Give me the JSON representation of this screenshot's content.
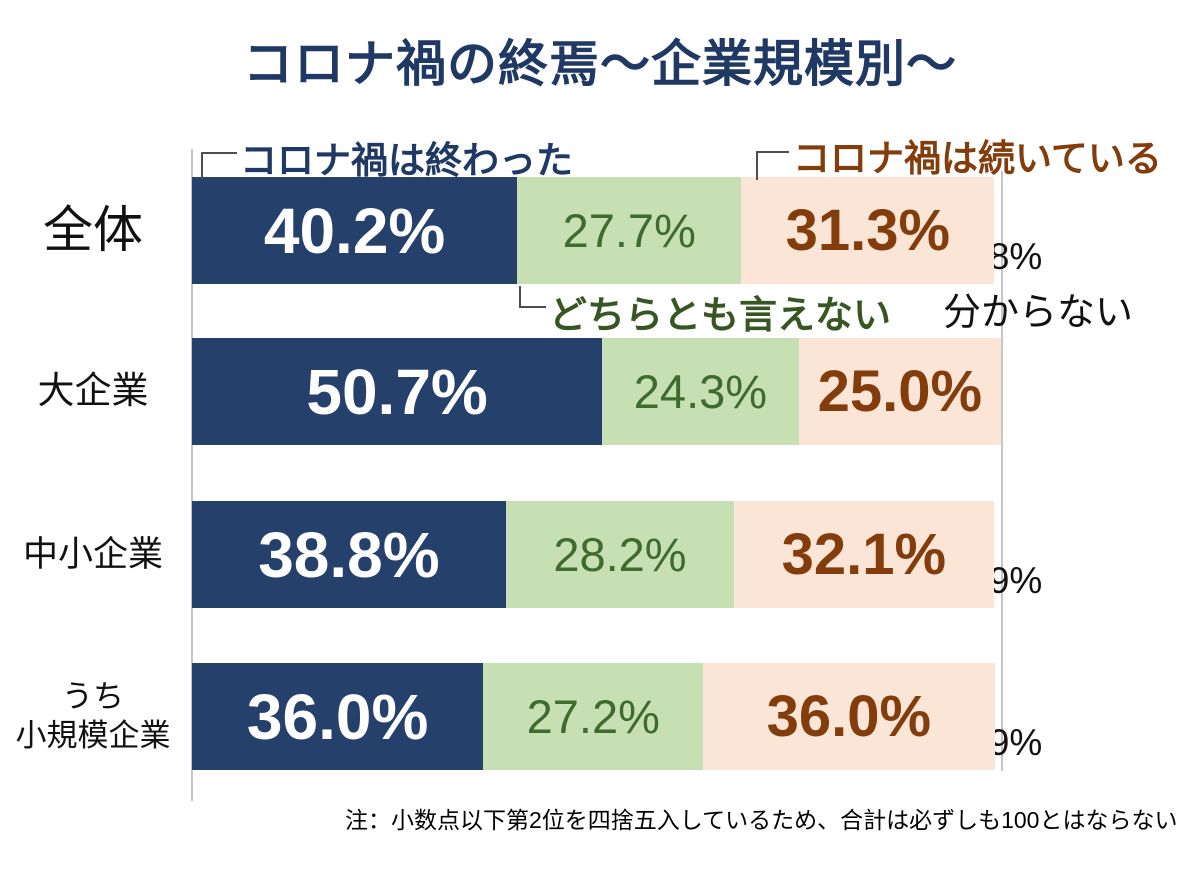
{
  "title": "コロナ禍の終焉～企業規模別～",
  "note": "注：小数点以下第2位を四捨五入しているため、合計は必ずしも100とはならない",
  "legend": {
    "ended": "コロナ禍は終わった",
    "neutral": "どちらとも言えない",
    "continuing": "コロナ禍は続いている",
    "unknown": "分からない"
  },
  "colors": {
    "navy_fill": "#24406B",
    "navy_text": "#1F3864",
    "green_fill": "#C6E0B4",
    "green_text": "#3F6B2E",
    "green_legend_text": "#375623",
    "peach_fill": "#FBE5D6",
    "brown_text": "#833C0C",
    "axis_gray": "#C6C6C6",
    "black_text": "#111111"
  },
  "chart_data": {
    "type": "bar",
    "orientation": "horizontal",
    "stacked": true,
    "unit": "%",
    "xlim": [
      0,
      100
    ],
    "grid": "right-edge-only",
    "legend_position": "callouts",
    "title": "コロナ禍の終焉～企業規模別～",
    "categories": [
      "全体",
      "大企業",
      "中小企業",
      "うち\n小規模企業"
    ],
    "series": [
      {
        "name": "コロナ禍は終わった",
        "color": "#24406B",
        "values": [
          40.2,
          50.7,
          38.8,
          36.0
        ]
      },
      {
        "name": "どちらとも言えない",
        "color": "#C6E0B4",
        "values": [
          27.7,
          24.3,
          28.2,
          27.2
        ]
      },
      {
        "name": "コロナ禍は続いている",
        "color": "#FBE5D6",
        "values": [
          31.3,
          25.0,
          32.1,
          36.0
        ]
      },
      {
        "name": "分からない",
        "color": "#FFFFFF",
        "values": [
          0.8,
          null,
          0.9,
          0.9
        ]
      }
    ],
    "note": "注：小数点以下第2位を四捨五入しているため、合計は必ずしも100とはならない"
  }
}
